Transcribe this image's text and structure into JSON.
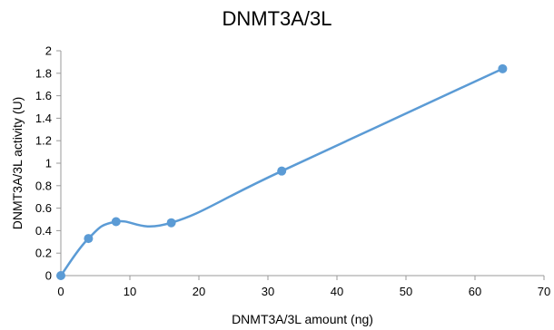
{
  "chart_data": {
    "type": "scatter",
    "title": "DNMT3A/3L",
    "xlabel": "DNMT3A/3L amount (ng)",
    "ylabel": "DNMT3A/3L activity (U)",
    "xlim": [
      0,
      70
    ],
    "ylim": [
      0,
      2
    ],
    "xticks": [
      0,
      10,
      20,
      30,
      40,
      50,
      60,
      70
    ],
    "yticks": [
      0,
      0.2,
      0.4,
      0.6,
      0.8,
      1,
      1.2,
      1.4,
      1.6,
      1.8,
      2
    ],
    "grid": false,
    "legend": "none",
    "line": "smooth",
    "color": "#5b9bd5",
    "series": [
      {
        "x": [
          0,
          4,
          8,
          16,
          32,
          64
        ],
        "y": [
          0,
          0.33,
          0.48,
          0.47,
          0.93,
          1.84
        ]
      }
    ]
  }
}
